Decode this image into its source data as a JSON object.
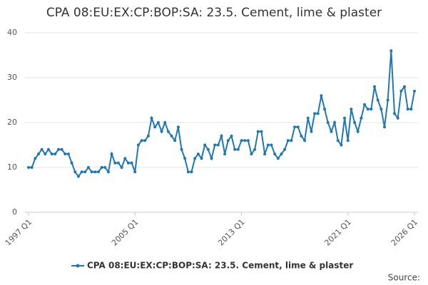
{
  "chart_data": {
    "type": "line",
    "title": "CPA 08:EU:EX:CP:BOP:SA: 23.5. Cement, lime & plaster",
    "source_label": "Source:",
    "categories": [
      "1997 Q1",
      null,
      null,
      null,
      null,
      null,
      null,
      null,
      null,
      null,
      null,
      null,
      null,
      null,
      null,
      null,
      null,
      null,
      null,
      null,
      null,
      null,
      null,
      null,
      null,
      null,
      null,
      null,
      null,
      null,
      null,
      null,
      "2005 Q1",
      null,
      null,
      null,
      null,
      null,
      null,
      null,
      null,
      null,
      null,
      null,
      null,
      null,
      null,
      null,
      null,
      null,
      null,
      null,
      null,
      null,
      null,
      null,
      null,
      null,
      null,
      null,
      null,
      null,
      null,
      null,
      "2013 Q1",
      null,
      null,
      null,
      null,
      null,
      null,
      null,
      null,
      null,
      null,
      null,
      null,
      null,
      null,
      null,
      null,
      null,
      null,
      null,
      null,
      null,
      null,
      null,
      null,
      null,
      null,
      null,
      null,
      null,
      null,
      null,
      "2021 Q1",
      null,
      null,
      null,
      null,
      null,
      null,
      null,
      null,
      null,
      null,
      null,
      null,
      null,
      null,
      null,
      null,
      null,
      null,
      null,
      "2026 Q1"
    ],
    "series": [
      {
        "name": "CPA 08:EU:EX:CP:BOP:SA: 23.5. Cement, lime & plaster",
        "color": "#1f78b4",
        "values": [
          10,
          10,
          12,
          13,
          14,
          13,
          14,
          13,
          13,
          14,
          14,
          13,
          13,
          11,
          9,
          8,
          9,
          9,
          10,
          9,
          9,
          9,
          10,
          10,
          9,
          13,
          11,
          11,
          10,
          12,
          11,
          11,
          9,
          15,
          16,
          16,
          17,
          21,
          19,
          20,
          18,
          20,
          18,
          17,
          16,
          19,
          14,
          12,
          9,
          9,
          12,
          13,
          12,
          15,
          14,
          12,
          15,
          15,
          17,
          13,
          16,
          17,
          14,
          14,
          16,
          16,
          16,
          13,
          14,
          18,
          18,
          13,
          15,
          15,
          13,
          12,
          13,
          14,
          16,
          16,
          19,
          19,
          17,
          16,
          21,
          18,
          22,
          22,
          26,
          23,
          20,
          18,
          20,
          16,
          15,
          21,
          16,
          23,
          20,
          18,
          21,
          24,
          23,
          23,
          28,
          25,
          23,
          19,
          25,
          36,
          22,
          21,
          27,
          28,
          23,
          23,
          27
        ]
      }
    ],
    "ylim": [
      0,
      40
    ],
    "yticks": [
      0,
      10,
      20,
      30,
      40
    ],
    "grid": true
  }
}
